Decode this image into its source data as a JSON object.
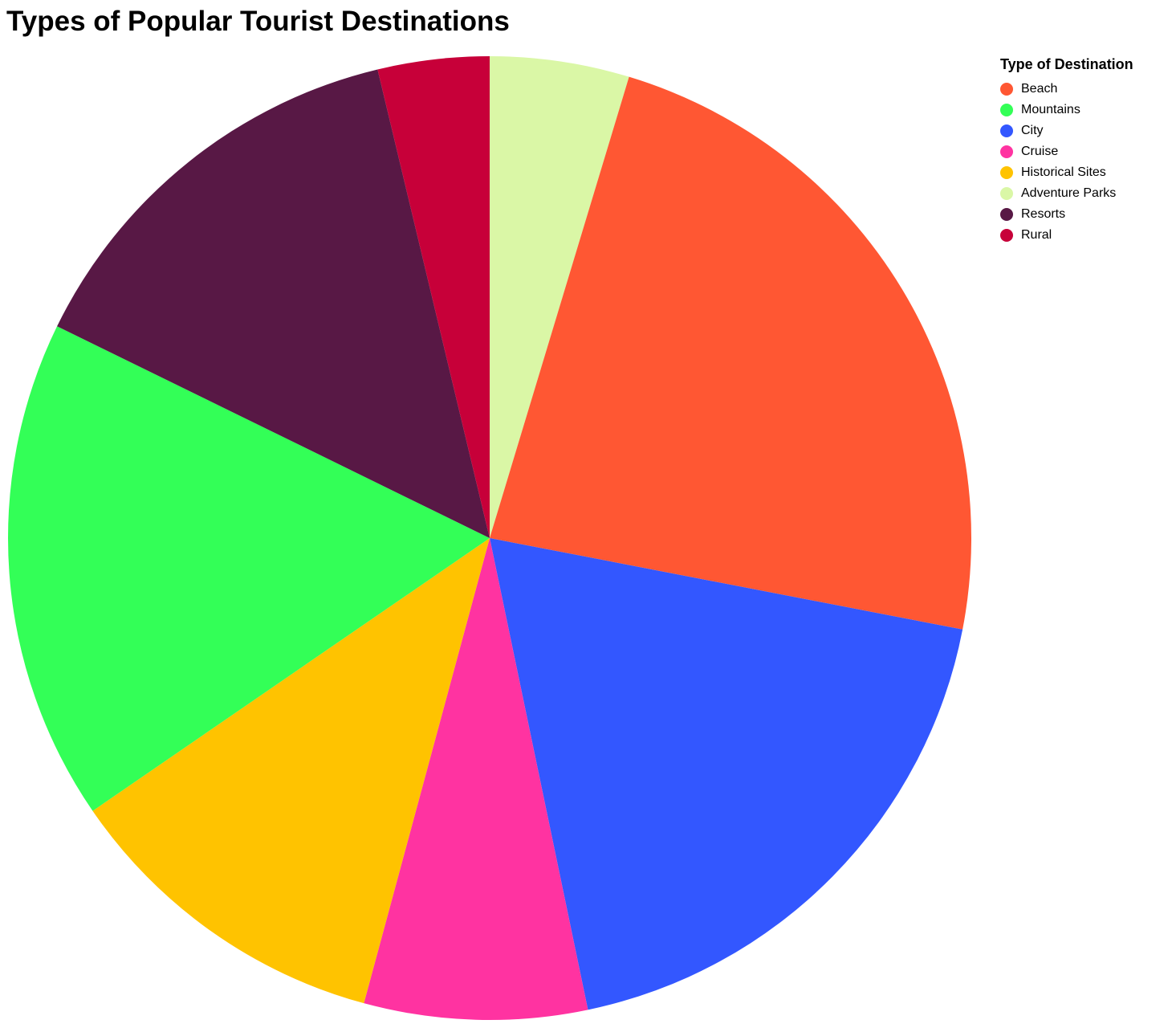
{
  "chart_data": {
    "type": "pie",
    "title": "Types of Popular Tourist Destinations",
    "legend_title": "Type of Destination",
    "legend_position": "top-right",
    "categories": [
      "Beach",
      "Mountains",
      "City",
      "Cruise",
      "Historical Sites",
      "Adventure Parks",
      "Resorts",
      "Rural"
    ],
    "values": [
      25,
      18,
      20,
      8,
      12,
      5,
      15,
      4
    ],
    "colors": [
      "#ff5733",
      "#33ff57",
      "#3357ff",
      "#ff33a1",
      "#ffc300",
      "#daf7a6",
      "#581845",
      "#c70039"
    ],
    "draw_order": [
      "Adventure Parks",
      "Beach",
      "City",
      "Cruise",
      "Historical Sites",
      "Mountains",
      "Resorts",
      "Rural"
    ]
  }
}
